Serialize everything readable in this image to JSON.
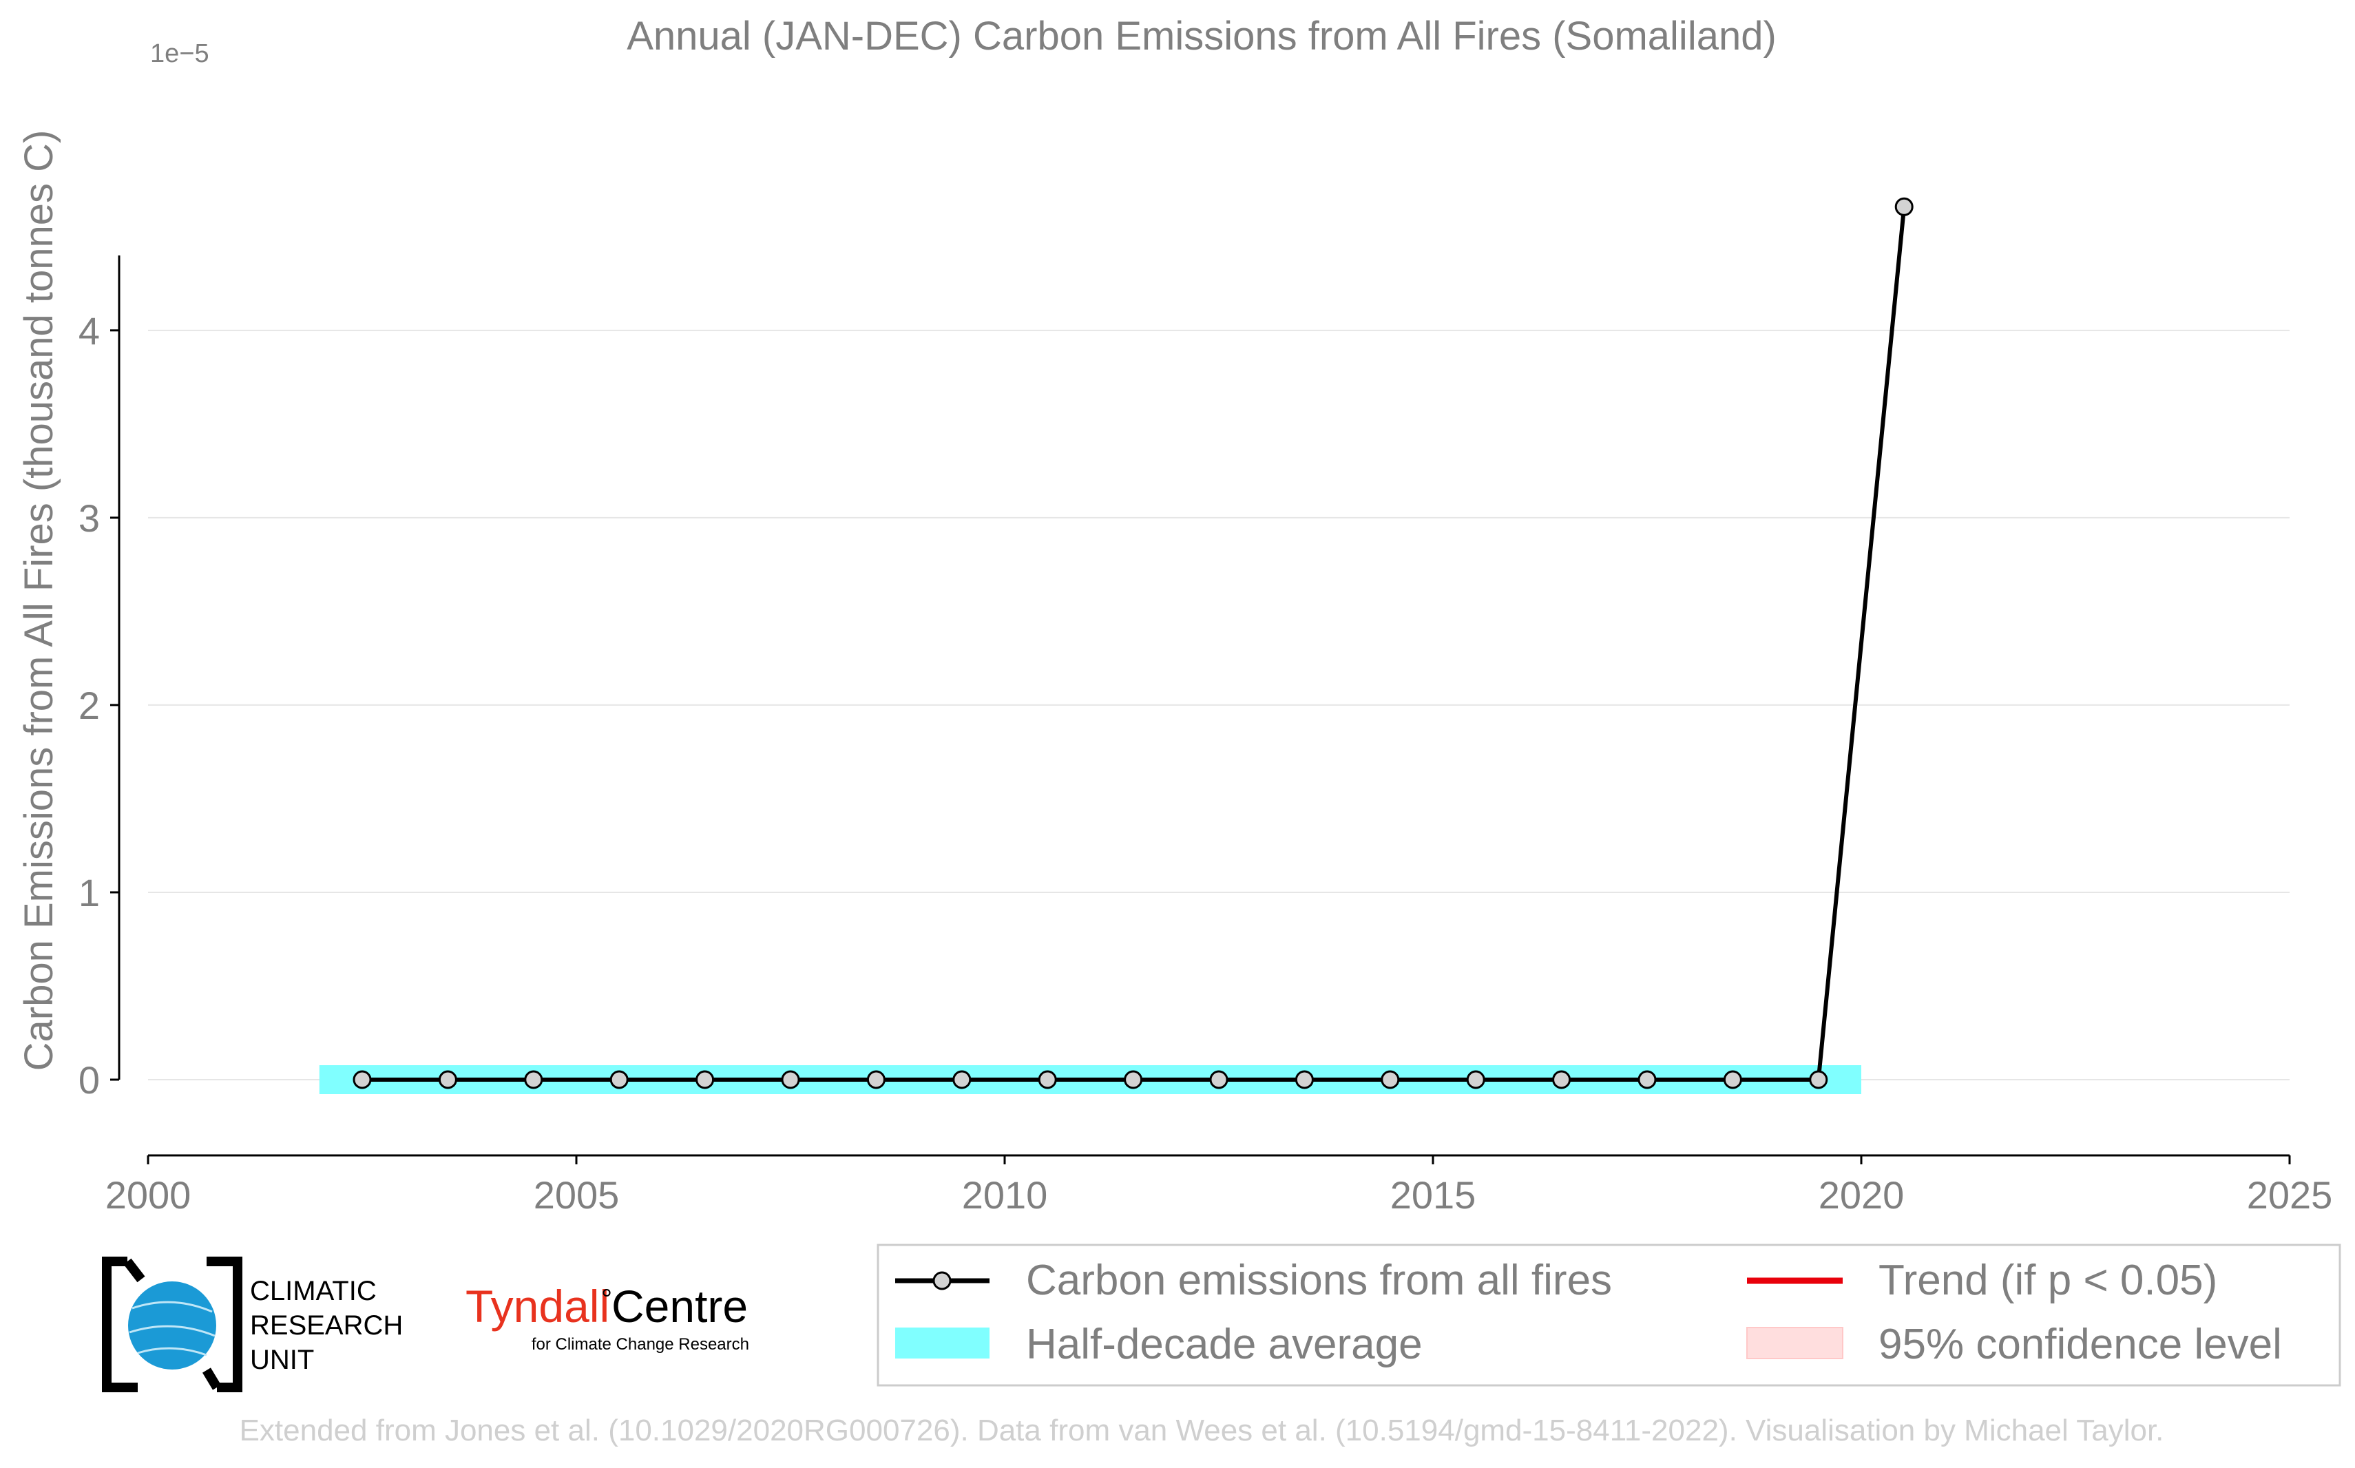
{
  "chart_data": {
    "type": "line",
    "title": "Annual (JAN-DEC) Carbon Emissions from All Fires (Somaliland)",
    "xlabel": "",
    "ylabel": "Carbon Emissions from All Fires (thousand tonnes C)",
    "y_offset_label": "1e−5",
    "xlim": [
      2000,
      2025
    ],
    "ylim": [
      -0.35,
      4.9
    ],
    "x_ticks": [
      2000,
      2005,
      2010,
      2015,
      2020,
      2025
    ],
    "x_tick_labels": [
      "2000",
      "2005",
      "2010",
      "2015",
      "2020",
      "2025"
    ],
    "y_ticks": [
      0,
      1,
      2,
      3,
      4
    ],
    "y_tick_labels": [
      "0",
      "1",
      "2",
      "3",
      "4"
    ],
    "grid": "horizontal",
    "series": [
      {
        "name": "Carbon emissions from all fires",
        "color": "#000000",
        "marker_fill": "#d3d3d3",
        "x": [
          2002.5,
          2003.5,
          2004.5,
          2005.5,
          2006.5,
          2007.5,
          2008.5,
          2009.5,
          2010.5,
          2011.5,
          2012.5,
          2013.5,
          2014.5,
          2015.5,
          2016.5,
          2017.5,
          2018.5,
          2019.5,
          2020.5
        ],
        "values": [
          0,
          0,
          0,
          0,
          0,
          0,
          0,
          0,
          0,
          0,
          0,
          0,
          0,
          0,
          0,
          0,
          0,
          0,
          4.66
        ]
      },
      {
        "name": "Half-decade average",
        "color": "#80ffff",
        "x_range": [
          2002,
          2020
        ],
        "value": 0
      }
    ],
    "legend": {
      "placement": "bottom-right",
      "entries": [
        {
          "label": "Carbon emissions from all fires",
          "symbol": "line-marker",
          "color": "#000000"
        },
        {
          "label": "Trend (if p < 0.05)",
          "symbol": "line",
          "color": "#e8000b"
        },
        {
          "label": "Half-decade average",
          "symbol": "patch",
          "color": "#80ffff"
        },
        {
          "label": "95% confidence level",
          "symbol": "patch",
          "color": "#ffdede"
        }
      ]
    }
  },
  "logos": {
    "cru_text": [
      "CLIMATIC",
      "RESEARCH",
      "UNIT"
    ],
    "tyndall_main": "Tyndall",
    "tyndall_degree": "°",
    "tyndall_centre": "Centre",
    "tyndall_sub": "for Climate Change Research",
    "tyndall_color": "#e8321e"
  },
  "footer": "Extended from Jones et al. (10.1029/2020RG000726). Data from van Wees et al. (10.5194/gmd-15-8411-2022). Visualisation by Michael Taylor.",
  "colors": {
    "text_gray": "#7f7f7f",
    "grid": "#e6e6e6",
    "footer_gray": "#cfcfcf"
  }
}
